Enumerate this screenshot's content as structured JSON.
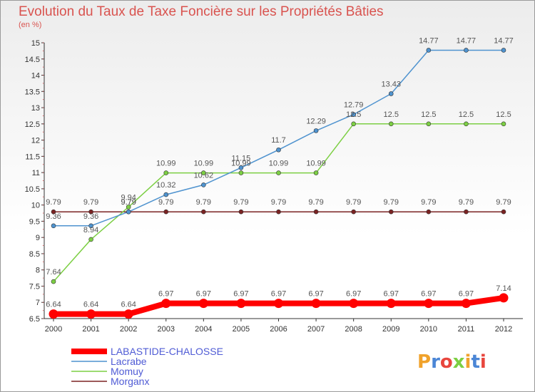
{
  "chart_data": {
    "type": "line",
    "title": "Evolution du Taux de Taxe Foncière sur les Propriétés Bâties",
    "ylabel": "(en %)",
    "ylim": [
      6.5,
      15
    ],
    "y_ticks": [
      "6.5",
      "7",
      "7.5",
      "8",
      "8.5",
      "9",
      "9.5",
      "10",
      "10.5",
      "11",
      "11.5",
      "12",
      "12.5",
      "13",
      "13.5",
      "14",
      "14.5",
      "15"
    ],
    "x": [
      "2000",
      "2001",
      "2002",
      "2003",
      "2004",
      "2005",
      "2006",
      "2007",
      "2008",
      "2009",
      "2010",
      "2011",
      "2012"
    ],
    "series": [
      {
        "name": "LABASTIDE-CHALOSSE",
        "color": "#ff0000",
        "values": [
          6.64,
          6.64,
          6.64,
          6.97,
          6.97,
          6.97,
          6.97,
          6.97,
          6.97,
          6.97,
          6.97,
          6.97,
          7.14
        ]
      },
      {
        "name": "Lacrabe",
        "color": "#4f93cf",
        "values": [
          9.36,
          9.36,
          9.79,
          10.32,
          10.62,
          11.15,
          11.7,
          12.29,
          12.79,
          13.43,
          14.77,
          14.77,
          14.77
        ]
      },
      {
        "name": "Momuy",
        "color": "#7ccf43",
        "values": [
          7.64,
          8.94,
          9.94,
          10.99,
          10.99,
          10.99,
          10.99,
          10.99,
          12.5,
          12.5,
          12.5,
          12.5,
          12.5
        ]
      },
      {
        "name": "Morganx",
        "color": "#7b2323",
        "values": [
          9.79,
          9.79,
          9.79,
          9.79,
          9.79,
          9.79,
          9.79,
          9.79,
          9.79,
          9.79,
          9.79,
          9.79,
          9.79
        ]
      }
    ],
    "point_labels": [
      [
        "6.64",
        "6.64",
        "6.64",
        "6.97",
        "6.97",
        "6.97",
        "6.97",
        "6.97",
        "6.97",
        "6.97",
        "6.97",
        "6.97",
        "7.14"
      ],
      [
        "9.36",
        "9.36",
        "9.79",
        "10.32",
        "10.62",
        "11.15",
        "11.7",
        "12.29",
        "12.79",
        "13.43",
        "14.77",
        "14.77",
        "14.77"
      ],
      [
        "7.64",
        "8.94",
        "9.94",
        "10.99",
        "10.99",
        "10.99",
        "10.99",
        "10.99",
        "12.5",
        "12.5",
        "12.5",
        "12.5",
        "12.5"
      ],
      [
        "9.79",
        "9.79",
        "9.79",
        "9.79",
        "9.79",
        "9.79",
        "9.79",
        "9.79",
        "9.79",
        "9.79",
        "9.79",
        "9.79",
        "9.79"
      ]
    ],
    "grid": false,
    "legend_position": "bottom-left"
  },
  "brand": {
    "letters": [
      "P",
      "r",
      "o",
      "x",
      "i",
      "t",
      "i"
    ],
    "colors": [
      "#f0a22b",
      "#4b86d6",
      "#e8463d",
      "#7ccf43",
      "#f0a22b",
      "#4b86d6",
      "#e8463d"
    ]
  }
}
